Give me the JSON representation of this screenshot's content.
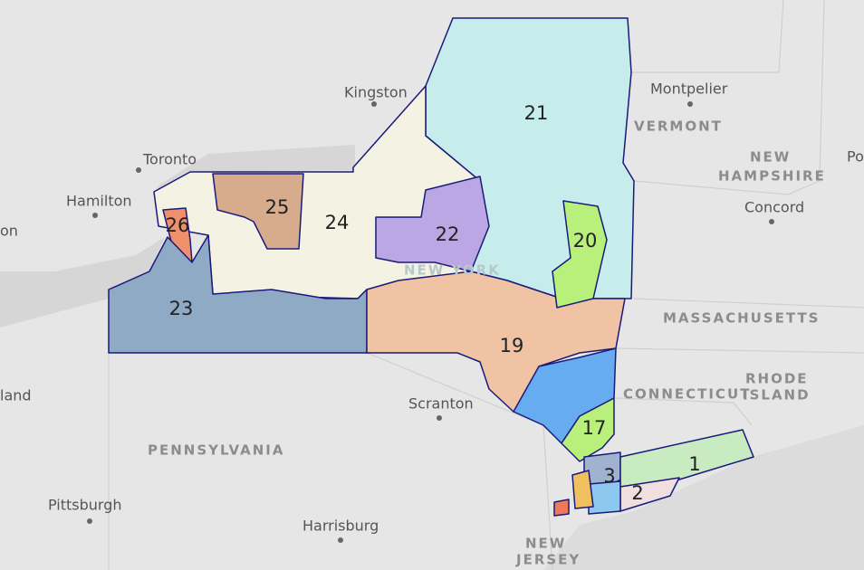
{
  "map": {
    "places": [
      {
        "label": "Kingston"
      },
      {
        "label": "Montpelier"
      },
      {
        "label": "Toronto"
      },
      {
        "label": "Hamilton"
      },
      {
        "label": "Concord"
      },
      {
        "label": "Scranton"
      },
      {
        "label": "Pittsburgh"
      },
      {
        "label": "Harrisburg"
      },
      {
        "label": "on"
      },
      {
        "label": "Po"
      },
      {
        "label": "land"
      }
    ],
    "regions": [
      {
        "label": "VERMONT"
      },
      {
        "label": "NEW"
      },
      {
        "label": "HAMPSHIRE"
      },
      {
        "label": "MASSACHUSETTS"
      },
      {
        "label": "CONNECTICUT"
      },
      {
        "label": "RHODE"
      },
      {
        "label": "ISLAND"
      },
      {
        "label": "PENNSYLVANIA"
      },
      {
        "label": "NEW"
      },
      {
        "label": "JERSEY"
      },
      {
        "label": "NEW YORK"
      }
    ],
    "districts": [
      {
        "label": "21"
      },
      {
        "label": "25"
      },
      {
        "label": "24"
      },
      {
        "label": "26"
      },
      {
        "label": "22"
      },
      {
        "label": "20"
      },
      {
        "label": "23"
      },
      {
        "label": "19"
      },
      {
        "label": "17"
      },
      {
        "label": "3"
      },
      {
        "label": "1"
      },
      {
        "label": "2"
      }
    ]
  }
}
